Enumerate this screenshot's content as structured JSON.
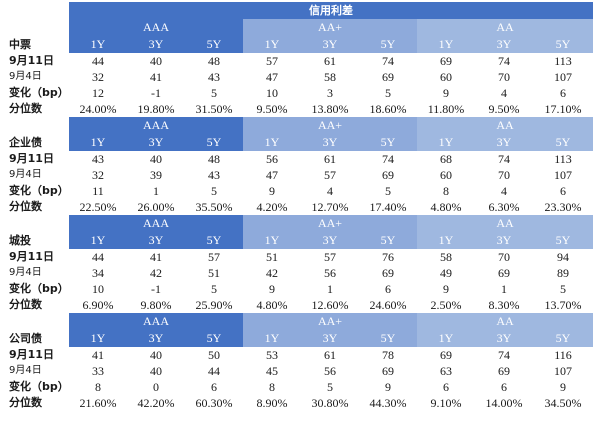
{
  "header": {
    "title": "信用利差"
  },
  "groups": [
    "AAA",
    "AA+",
    "AA"
  ],
  "tenors": [
    "1Y",
    "3Y",
    "5Y"
  ],
  "row_labels": {
    "d1": "9月11日",
    "d2": "9月4日",
    "chg": "变化（bp）",
    "pct": "分位数"
  },
  "blocks": [
    {
      "name": "中票",
      "d1": [
        "44",
        "40",
        "48",
        "57",
        "61",
        "74",
        "69",
        "74",
        "113"
      ],
      "d2": [
        "32",
        "41",
        "43",
        "47",
        "58",
        "69",
        "60",
        "70",
        "107"
      ],
      "chg": [
        "12",
        "-1",
        "5",
        "10",
        "3",
        "5",
        "9",
        "4",
        "6"
      ],
      "pct": [
        "24.00%",
        "19.80%",
        "31.50%",
        "9.50%",
        "13.80%",
        "18.60%",
        "11.80%",
        "9.50%",
        "17.10%"
      ]
    },
    {
      "name": "企业债",
      "d1": [
        "43",
        "40",
        "48",
        "56",
        "61",
        "74",
        "68",
        "74",
        "113"
      ],
      "d2": [
        "32",
        "39",
        "43",
        "47",
        "57",
        "69",
        "60",
        "70",
        "107"
      ],
      "chg": [
        "11",
        "1",
        "5",
        "9",
        "4",
        "5",
        "8",
        "4",
        "6"
      ],
      "pct": [
        "22.50%",
        "26.00%",
        "35.50%",
        "4.20%",
        "12.70%",
        "17.40%",
        "4.80%",
        "6.30%",
        "23.30%"
      ]
    },
    {
      "name": "城投",
      "d1": [
        "44",
        "41",
        "57",
        "51",
        "57",
        "76",
        "58",
        "70",
        "94"
      ],
      "d2": [
        "34",
        "42",
        "51",
        "42",
        "56",
        "69",
        "49",
        "69",
        "89"
      ],
      "chg": [
        "10",
        "-1",
        "5",
        "9",
        "1",
        "6",
        "9",
        "1",
        "5"
      ],
      "pct": [
        "6.90%",
        "9.80%",
        "25.90%",
        "4.80%",
        "12.60%",
        "24.60%",
        "2.50%",
        "8.30%",
        "13.70%"
      ]
    },
    {
      "name": "公司债",
      "d1": [
        "41",
        "40",
        "50",
        "53",
        "61",
        "78",
        "69",
        "74",
        "116"
      ],
      "d2": [
        "33",
        "40",
        "44",
        "45",
        "56",
        "69",
        "63",
        "69",
        "107"
      ],
      "chg": [
        "8",
        "0",
        "6",
        "8",
        "5",
        "9",
        "6",
        "6",
        "9"
      ],
      "pct": [
        "21.60%",
        "42.20%",
        "60.30%",
        "8.90%",
        "30.80%",
        "44.30%",
        "9.10%",
        "14.00%",
        "34.50%"
      ]
    }
  ]
}
